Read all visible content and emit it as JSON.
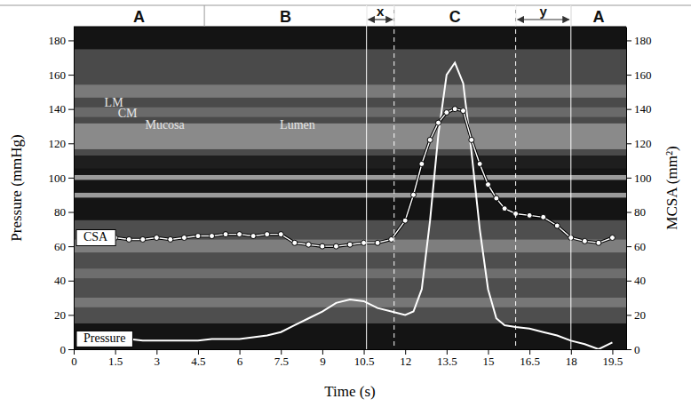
{
  "chart_data": {
    "type": "line",
    "x_label": "Time (s)",
    "y_label": "Pressure (mmHg)",
    "y2_label": "MCSA (mm²)",
    "xlim": [
      0,
      20
    ],
    "xticks": [
      0,
      1.5,
      3,
      4.5,
      6,
      7.5,
      9,
      10.5,
      12,
      13.5,
      15,
      16.5,
      18,
      19.5
    ],
    "ylim": [
      0,
      188
    ],
    "yticks": [
      0,
      20,
      40,
      60,
      80,
      100,
      120,
      140,
      160,
      180
    ],
    "y2lim": [
      0,
      188
    ],
    "y2ticks": [
      0,
      20,
      40,
      60,
      80,
      100,
      120,
      140,
      160,
      180
    ],
    "x": [
      1.5,
      2,
      2.5,
      3,
      3.5,
      4,
      4.5,
      5,
      5.5,
      6,
      6.5,
      7,
      7.5,
      8,
      8.5,
      9,
      9.5,
      10,
      10.5,
      11,
      11.5,
      12,
      12.3,
      12.6,
      12.9,
      13.2,
      13.5,
      13.8,
      14.1,
      14.4,
      14.7,
      15,
      15.3,
      15.6,
      16,
      16.5,
      17,
      17.5,
      18,
      18.5,
      19,
      19.5
    ],
    "series": [
      {
        "name": "Pressure",
        "color": "#ffffff",
        "marker": "none",
        "line_style": "solid",
        "values": [
          6,
          6,
          5,
          5,
          5,
          5,
          5,
          6,
          6,
          6,
          7,
          8,
          10,
          14,
          18,
          22,
          27,
          29,
          28,
          24,
          22,
          20,
          22,
          35,
          75,
          125,
          160,
          167,
          155,
          115,
          70,
          35,
          18,
          14,
          13,
          12,
          10,
          8,
          5,
          3,
          0,
          4
        ]
      },
      {
        "name": "CSA",
        "color": "#ffffff",
        "marker": "circle",
        "line_style": "solid",
        "axis": "y2",
        "values": [
          65,
          64,
          64,
          65,
          64,
          65,
          66,
          66,
          67,
          67,
          66,
          67,
          67,
          62,
          61,
          60,
          60,
          61,
          62,
          62,
          64,
          75,
          90,
          108,
          122,
          132,
          138,
          140,
          139,
          122,
          108,
          96,
          88,
          82,
          79,
          78,
          77,
          72,
          65,
          63,
          62,
          65
        ]
      }
    ],
    "phases": [
      {
        "label": "A",
        "start": 0,
        "end": 4.73
      },
      {
        "label": "B",
        "start": 4.73,
        "end": 10.6
      },
      {
        "label": "x",
        "start": 10.6,
        "end": 11.6
      },
      {
        "label": "C",
        "start": 11.6,
        "end": 16.0
      },
      {
        "label": "y",
        "start": 16.0,
        "end": 18.0
      },
      {
        "label": "A",
        "start": 18.0,
        "end": 20
      }
    ],
    "annotations": [
      {
        "text": "LM",
        "x": 1.45,
        "y": 143
      },
      {
        "text": "CM",
        "x": 1.95,
        "y": 137
      },
      {
        "text": "Mucosa",
        "x": 3.3,
        "y": 130
      },
      {
        "text": "Lumen",
        "x": 8.1,
        "y": 130
      }
    ]
  }
}
